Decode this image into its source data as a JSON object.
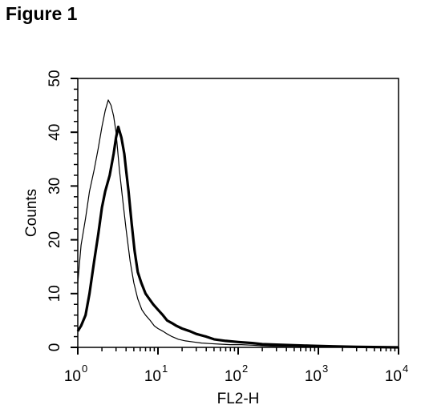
{
  "figure_label": "Figure 1",
  "chart_data": {
    "type": "line",
    "title": "",
    "xlabel": "FL2-H",
    "ylabel": "Counts",
    "x_scale": "log",
    "xlim": [
      1,
      10000
    ],
    "ylim": [
      0,
      50
    ],
    "x_ticks": [
      {
        "value": 1,
        "base": "10",
        "exp": "0"
      },
      {
        "value": 10,
        "base": "10",
        "exp": "1"
      },
      {
        "value": 100,
        "base": "10",
        "exp": "2"
      },
      {
        "value": 1000,
        "base": "10",
        "exp": "3"
      },
      {
        "value": 10000,
        "base": "10",
        "exp": "4"
      }
    ],
    "y_ticks": [
      "0",
      "10",
      "20",
      "30",
      "40",
      "50"
    ],
    "grid": false,
    "legend": "none",
    "series": [
      {
        "style": "thin",
        "color": "#000000",
        "x": [
          1.0,
          1.1,
          1.25,
          1.4,
          1.6,
          1.8,
          2.0,
          2.2,
          2.4,
          2.6,
          2.8,
          3.0,
          3.3,
          3.6,
          4.0,
          4.5,
          5.0,
          5.6,
          6.3,
          7.0,
          8.0,
          9.0,
          10.0,
          11.5,
          13.0,
          15.0,
          18.0,
          22.0,
          28.0,
          35.0,
          45.0,
          60.0,
          80.0,
          110.0,
          150.0,
          200.0,
          300.0,
          500.0,
          800.0,
          1500.0,
          3000.0,
          10000.0
        ],
        "y": [
          12,
          19,
          24,
          29,
          33,
          37,
          41,
          44,
          46,
          45,
          43,
          40,
          33,
          28,
          22,
          16,
          12,
          9,
          7,
          6,
          5,
          4,
          3.5,
          3,
          2.5,
          2,
          1.5,
          1.2,
          1,
          0.8,
          0.7,
          0.6,
          0.5,
          0.5,
          0.4,
          0.3,
          0.2,
          0.2,
          0.1,
          0.1,
          0,
          0
        ]
      },
      {
        "style": "thick",
        "color": "#000000",
        "x": [
          1.0,
          1.1,
          1.25,
          1.4,
          1.6,
          1.8,
          2.0,
          2.2,
          2.5,
          2.8,
          3.0,
          3.2,
          3.5,
          3.8,
          4.0,
          4.3,
          4.7,
          5.1,
          5.6,
          6.2,
          7.0,
          7.8,
          8.7,
          10.0,
          11.5,
          13.0,
          15.0,
          17.0,
          20.0,
          25.0,
          30.0,
          40.0,
          50.0,
          70.0,
          100.0,
          150.0,
          200.0,
          300.0,
          500.0,
          800.0,
          1500.0,
          3000.0,
          10000.0
        ],
        "y": [
          3,
          4,
          6,
          10,
          16,
          21,
          26,
          29,
          32,
          36,
          39,
          41,
          39,
          36,
          33,
          29,
          23,
          18,
          14,
          12,
          10,
          9,
          8,
          7,
          6,
          5,
          4.5,
          4,
          3.5,
          3,
          2.5,
          2,
          1.5,
          1.2,
          1,
          0.8,
          0.6,
          0.5,
          0.4,
          0.3,
          0.2,
          0.1,
          0
        ]
      }
    ]
  }
}
